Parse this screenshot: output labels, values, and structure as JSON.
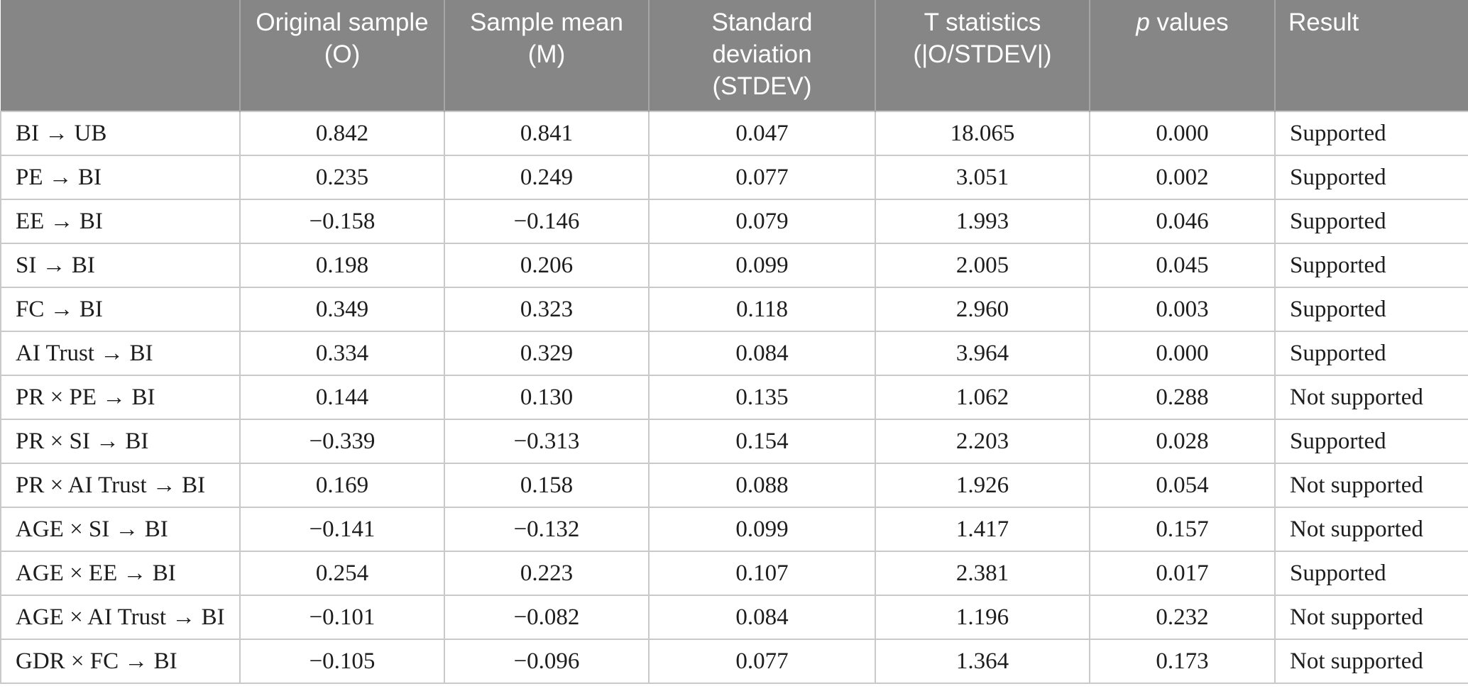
{
  "styles": {
    "header_background": "#868686",
    "header_text_color": "#ffffff",
    "header_divider_color": "#a6a6a6",
    "body_border_color": "#c9c9c9",
    "body_text_color": "#1d1d1d"
  },
  "table": {
    "columns": [
      {
        "key": "path",
        "label": ""
      },
      {
        "key": "original_sample",
        "label": "Original sample (O)"
      },
      {
        "key": "sample_mean",
        "label": "Sample mean (M)"
      },
      {
        "key": "stdev",
        "label": "Standard deviation (STDEV)"
      },
      {
        "key": "t_statistics",
        "label": "T statistics (|O/STDEV|)"
      },
      {
        "key": "p_values",
        "label": "p values",
        "italic_part": "p",
        "rest_part": " values"
      },
      {
        "key": "result",
        "label": "Result"
      }
    ],
    "rows": [
      {
        "path": "BI → UB",
        "original_sample": "0.842",
        "sample_mean": "0.841",
        "stdev": "0.047",
        "t_statistics": "18.065",
        "p_values": "0.000",
        "result": "Supported"
      },
      {
        "path": "PE → BI",
        "original_sample": "0.235",
        "sample_mean": "0.249",
        "stdev": "0.077",
        "t_statistics": "3.051",
        "p_values": "0.002",
        "result": "Supported"
      },
      {
        "path": "EE → BI",
        "original_sample": "−0.158",
        "sample_mean": "−0.146",
        "stdev": "0.079",
        "t_statistics": "1.993",
        "p_values": "0.046",
        "result": "Supported"
      },
      {
        "path": "SI → BI",
        "original_sample": "0.198",
        "sample_mean": "0.206",
        "stdev": "0.099",
        "t_statistics": "2.005",
        "p_values": "0.045",
        "result": "Supported"
      },
      {
        "path": "FC → BI",
        "original_sample": "0.349",
        "sample_mean": "0.323",
        "stdev": "0.118",
        "t_statistics": "2.960",
        "p_values": "0.003",
        "result": "Supported"
      },
      {
        "path": "AI Trust → BI",
        "original_sample": "0.334",
        "sample_mean": "0.329",
        "stdev": "0.084",
        "t_statistics": "3.964",
        "p_values": "0.000",
        "result": "Supported"
      },
      {
        "path": "PR × PE → BI",
        "original_sample": "0.144",
        "sample_mean": "0.130",
        "stdev": "0.135",
        "t_statistics": "1.062",
        "p_values": "0.288",
        "result": "Not supported"
      },
      {
        "path": "PR × SI → BI",
        "original_sample": "−0.339",
        "sample_mean": "−0.313",
        "stdev": "0.154",
        "t_statistics": "2.203",
        "p_values": "0.028",
        "result": "Supported"
      },
      {
        "path": "PR × AI Trust → BI",
        "original_sample": "0.169",
        "sample_mean": "0.158",
        "stdev": "0.088",
        "t_statistics": "1.926",
        "p_values": "0.054",
        "result": "Not supported"
      },
      {
        "path": "AGE × SI → BI",
        "original_sample": "−0.141",
        "sample_mean": "−0.132",
        "stdev": "0.099",
        "t_statistics": "1.417",
        "p_values": "0.157",
        "result": "Not supported"
      },
      {
        "path": "AGE × EE → BI",
        "original_sample": "0.254",
        "sample_mean": "0.223",
        "stdev": "0.107",
        "t_statistics": "2.381",
        "p_values": "0.017",
        "result": "Supported"
      },
      {
        "path": "AGE × AI Trust → BI",
        "original_sample": "−0.101",
        "sample_mean": "−0.082",
        "stdev": "0.084",
        "t_statistics": "1.196",
        "p_values": "0.232",
        "result": "Not supported"
      },
      {
        "path": "GDR × FC → BI",
        "original_sample": "−0.105",
        "sample_mean": "−0.096",
        "stdev": "0.077",
        "t_statistics": "1.364",
        "p_values": "0.173",
        "result": "Not supported"
      }
    ]
  }
}
